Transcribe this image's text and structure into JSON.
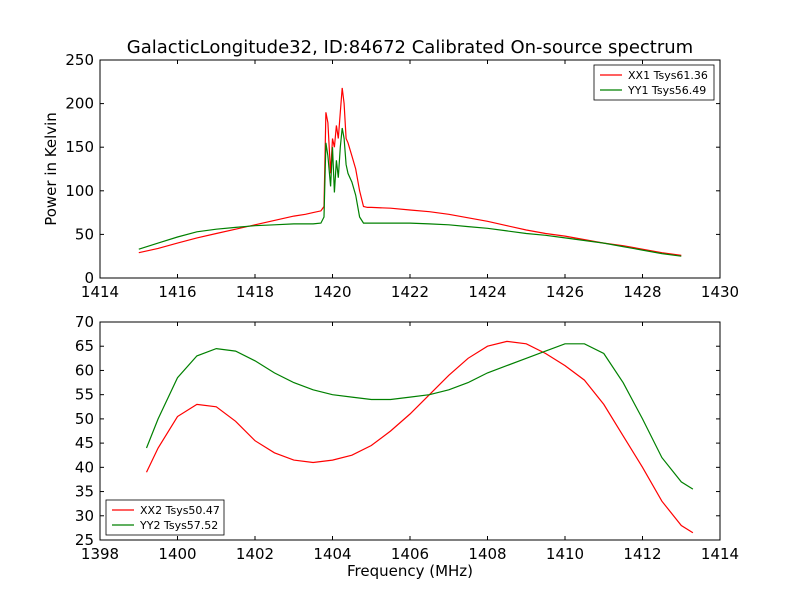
{
  "figure": {
    "title": "GalacticLongitude32, ID:84672 Calibrated On-source spectrum"
  },
  "chart_data": [
    {
      "type": "line",
      "title": "GalacticLongitude32, ID:84672 Calibrated On-source spectrum",
      "xlabel": "",
      "ylabel": "Power in Kelvin",
      "xlim": [
        1414,
        1430
      ],
      "ylim": [
        0,
        250
      ],
      "xticks": [
        1414,
        1416,
        1418,
        1420,
        1422,
        1424,
        1426,
        1428,
        1430
      ],
      "yticks": [
        0,
        50,
        100,
        150,
        200,
        250
      ],
      "grid": false,
      "legend": "top-right",
      "series": [
        {
          "name": "XX1 Tsys61.36",
          "color": "#ff0000",
          "x": [
            1415.0,
            1415.5,
            1416.0,
            1416.5,
            1417.0,
            1417.5,
            1418.0,
            1418.5,
            1419.0,
            1419.3,
            1419.5,
            1419.7,
            1419.78,
            1419.83,
            1419.88,
            1419.95,
            1420.0,
            1420.05,
            1420.1,
            1420.15,
            1420.2,
            1420.25,
            1420.3,
            1420.35,
            1420.4,
            1420.5,
            1420.6,
            1420.7,
            1420.8,
            1420.9,
            1421.0,
            1421.5,
            1422.0,
            1422.5,
            1423.0,
            1423.5,
            1424.0,
            1424.5,
            1425.0,
            1425.5,
            1426.0,
            1426.5,
            1427.0,
            1427.5,
            1428.0,
            1428.5,
            1429.0
          ],
          "y": [
            29,
            34,
            40,
            46,
            51,
            56,
            61,
            66,
            71,
            73,
            75,
            77,
            82,
            190,
            178,
            120,
            160,
            150,
            175,
            160,
            190,
            218,
            200,
            160,
            155,
            140,
            125,
            100,
            82,
            81,
            81,
            80,
            78,
            76,
            73,
            69,
            65,
            60,
            55,
            51,
            48,
            44,
            40,
            37,
            33,
            29,
            26
          ]
        },
        {
          "name": "YY1 Tsys56.49",
          "color": "#008000",
          "x": [
            1415.0,
            1415.5,
            1416.0,
            1416.5,
            1417.0,
            1417.5,
            1418.0,
            1418.5,
            1419.0,
            1419.3,
            1419.5,
            1419.7,
            1419.78,
            1419.83,
            1419.88,
            1419.95,
            1420.0,
            1420.05,
            1420.1,
            1420.15,
            1420.2,
            1420.25,
            1420.3,
            1420.35,
            1420.4,
            1420.5,
            1420.6,
            1420.7,
            1420.8,
            1420.9,
            1421.0,
            1421.5,
            1422.0,
            1422.5,
            1423.0,
            1423.5,
            1424.0,
            1424.5,
            1425.0,
            1425.5,
            1426.0,
            1426.5,
            1427.0,
            1427.5,
            1428.0,
            1428.5,
            1429.0
          ],
          "y": [
            33,
            40,
            47,
            53,
            56,
            58,
            60,
            61,
            62,
            62,
            62,
            63,
            70,
            155,
            140,
            105,
            150,
            98,
            135,
            115,
            150,
            172,
            160,
            130,
            120,
            110,
            95,
            70,
            63,
            63,
            63,
            63,
            63,
            62,
            61,
            59,
            57,
            54,
            51,
            49,
            46,
            43,
            40,
            36,
            32,
            28,
            25
          ]
        }
      ]
    },
    {
      "type": "line",
      "title": "",
      "xlabel": "Frequency (MHz)",
      "ylabel": "",
      "xlim": [
        1398,
        1414
      ],
      "ylim": [
        25,
        70
      ],
      "xticks": [
        1398,
        1400,
        1402,
        1404,
        1406,
        1408,
        1410,
        1412,
        1414
      ],
      "yticks": [
        25,
        30,
        35,
        40,
        45,
        50,
        55,
        60,
        65,
        70
      ],
      "grid": false,
      "legend": "bottom-left",
      "series": [
        {
          "name": "XX2 Tsys50.47",
          "color": "#ff0000",
          "x": [
            1399.2,
            1399.5,
            1400.0,
            1400.5,
            1401.0,
            1401.5,
            1402.0,
            1402.5,
            1403.0,
            1403.5,
            1404.0,
            1404.5,
            1405.0,
            1405.5,
            1406.0,
            1406.5,
            1407.0,
            1407.5,
            1408.0,
            1408.5,
            1409.0,
            1409.5,
            1410.0,
            1410.5,
            1411.0,
            1411.5,
            1412.0,
            1412.5,
            1413.0,
            1413.3
          ],
          "y": [
            39,
            44,
            50.5,
            53,
            52.5,
            49.5,
            45.5,
            43,
            41.5,
            41,
            41.5,
            42.5,
            44.5,
            47.5,
            51,
            55,
            59,
            62.5,
            65,
            66,
            65.5,
            63.5,
            61,
            58,
            53,
            46.5,
            40,
            33,
            28,
            26.5
          ]
        },
        {
          "name": "YY2 Tsys57.52",
          "color": "#008000",
          "x": [
            1399.2,
            1399.5,
            1400.0,
            1400.5,
            1401.0,
            1401.5,
            1402.0,
            1402.5,
            1403.0,
            1403.5,
            1404.0,
            1404.5,
            1405.0,
            1405.5,
            1406.0,
            1406.5,
            1407.0,
            1407.5,
            1408.0,
            1408.5,
            1409.0,
            1409.5,
            1410.0,
            1410.5,
            1411.0,
            1411.5,
            1412.0,
            1412.5,
            1413.0,
            1413.3
          ],
          "y": [
            44,
            50,
            58.5,
            63,
            64.5,
            64,
            62,
            59.5,
            57.5,
            56,
            55,
            54.5,
            54,
            54,
            54.5,
            55,
            56,
            57.5,
            59.5,
            61,
            62.5,
            64,
            65.5,
            65.5,
            63.5,
            57.5,
            50,
            42,
            37,
            35.5
          ]
        }
      ]
    }
  ]
}
